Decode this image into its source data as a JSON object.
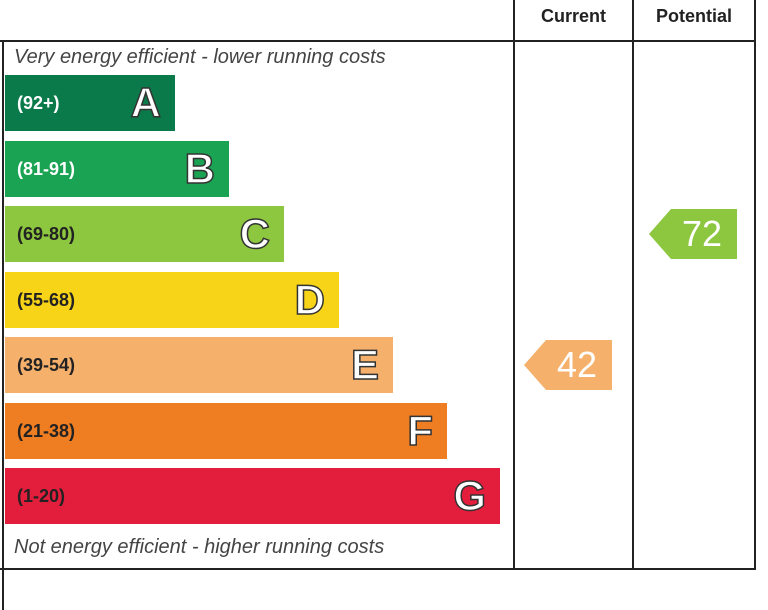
{
  "chart_data": {
    "type": "bar",
    "title": "",
    "column_headers": [
      "Current",
      "Potential"
    ],
    "top_caption": "Very energy efficient - lower running costs",
    "bottom_caption": "Not energy efficient - higher running costs",
    "bands": [
      {
        "letter": "A",
        "range": "(92+)",
        "color": "#0a7a4a",
        "text_color": "#ffffff",
        "min": 92,
        "max": 100
      },
      {
        "letter": "B",
        "range": "(81-91)",
        "color": "#1aa353",
        "text_color": "#ffffff",
        "min": 81,
        "max": 91
      },
      {
        "letter": "C",
        "range": "(69-80)",
        "color": "#8dc63f",
        "text_color": "#222222",
        "min": 69,
        "max": 80
      },
      {
        "letter": "D",
        "range": "(55-68)",
        "color": "#f7d417",
        "text_color": "#222222",
        "min": 55,
        "max": 68
      },
      {
        "letter": "E",
        "range": "(39-54)",
        "color": "#f5b16c",
        "text_color": "#222222",
        "min": 39,
        "max": 54
      },
      {
        "letter": "F",
        "range": "(21-38)",
        "color": "#ef7d22",
        "text_color": "#222222",
        "min": 21,
        "max": 38
      },
      {
        "letter": "G",
        "range": "(1-20)",
        "color": "#e31d3c",
        "text_color": "#222222",
        "min": 1,
        "max": 20
      }
    ],
    "ratings": [
      {
        "column": "Current",
        "value": "42",
        "band": "E",
        "color": "#f5b16c"
      },
      {
        "column": "Potential",
        "value": "72",
        "band": "C",
        "color": "#8dc63f"
      }
    ]
  }
}
